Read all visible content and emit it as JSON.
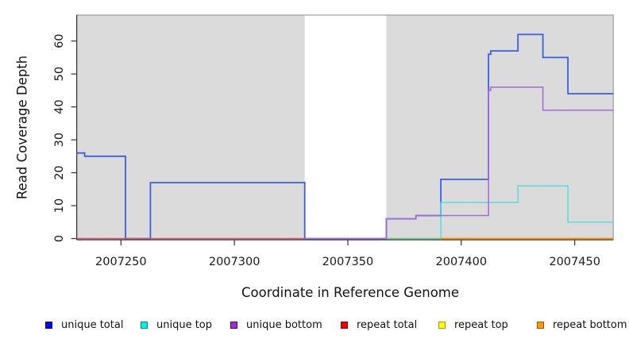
{
  "chart_data": {
    "type": "line",
    "subtype": "step-coverage",
    "title": "",
    "xlabel": "Coordinate in Reference Genome",
    "ylabel": "Read Coverage Depth",
    "xlim": [
      2007230.5,
      2007467
    ],
    "ylim": [
      0,
      67.9
    ],
    "x_ticks": [
      2007250,
      2007300,
      2007350,
      2007400,
      2007450
    ],
    "y_ticks": [
      0,
      10,
      20,
      30,
      40,
      50,
      60
    ],
    "grid": false,
    "plot_bg": "#DBDBDB",
    "masked_region": {
      "from": 2007331,
      "to": 2007367,
      "color": "#FFFFFF"
    },
    "series": [
      {
        "name": "unique total",
        "line_color": "#3A5FE0",
        "line_width": 1.8,
        "steps": [
          [
            2007230.5,
            26
          ],
          [
            2007234,
            25
          ],
          [
            2007252,
            0
          ],
          [
            2007263,
            17
          ],
          [
            2007331,
            0
          ],
          [
            2007367,
            6
          ],
          [
            2007380,
            7
          ],
          [
            2007391,
            18
          ],
          [
            2007412,
            56
          ],
          [
            2007413,
            57
          ],
          [
            2007425,
            62
          ],
          [
            2007436,
            55
          ],
          [
            2007447,
            44
          ],
          [
            2007467,
            null
          ]
        ]
      },
      {
        "name": "unique top",
        "line_color": "#4ADCDC",
        "line_width": 1.4,
        "steps": [
          [
            2007367,
            0
          ],
          [
            2007391,
            11
          ],
          [
            2007425,
            16
          ],
          [
            2007447,
            5
          ],
          [
            2007467,
            null
          ]
        ]
      },
      {
        "name": "unique bottom",
        "line_color": "#A468D8",
        "line_width": 1.5,
        "steps": [
          [
            2007331,
            0
          ],
          [
            2007367,
            6
          ],
          [
            2007380,
            7
          ],
          [
            2007412,
            45
          ],
          [
            2007413,
            46
          ],
          [
            2007436,
            39
          ],
          [
            2007467,
            null
          ]
        ]
      },
      {
        "name": "repeat total",
        "line_color": "#E05068",
        "line_width": 1.4,
        "steps": [
          [
            2007230.5,
            0
          ],
          [
            2007331,
            null
          ]
        ]
      },
      {
        "name": "repeat top",
        "line_color": "#76C876",
        "line_width": 1.4,
        "steps": [
          [
            2007367,
            0
          ],
          [
            2007391,
            null
          ]
        ]
      },
      {
        "name": "repeat bottom",
        "line_color": "#FF9100",
        "line_width": 2,
        "steps": [
          [
            2007391,
            0
          ],
          [
            2007467,
            null
          ]
        ]
      }
    ],
    "legend_position": "bottom"
  },
  "legend": {
    "items": [
      {
        "label": "unique total",
        "color": "#0000EE",
        "border": "#00008B"
      },
      {
        "label": "unique top",
        "color": "#00EEEE",
        "border": "#008B8B"
      },
      {
        "label": "unique bottom",
        "color": "#9932CC",
        "border": "#4B0082"
      },
      {
        "label": "repeat total",
        "color": "#EE0000",
        "border": "#8B0000"
      },
      {
        "label": "repeat top",
        "color": "#FFFF00",
        "border": "#999900"
      },
      {
        "label": "repeat bottom",
        "color": "#FF9900",
        "border": "#995500"
      }
    ]
  },
  "axes": {
    "x_title": "Coordinate in Reference Genome",
    "y_title": "Read Coverage Depth"
  }
}
